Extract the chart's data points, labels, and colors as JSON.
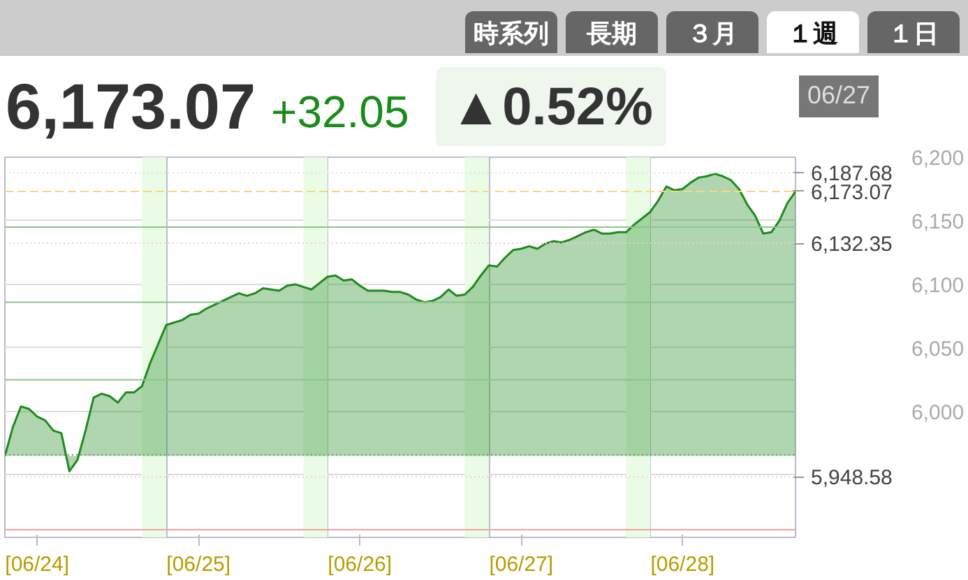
{
  "chart_data": {
    "type": "area",
    "title": "6,173.07",
    "annotations": [
      "時系列",
      "長期",
      "３月",
      "１週",
      "１日",
      "+32.05",
      "▲0.52%",
      "06/27"
    ],
    "categories": [
      null,
      null,
      null,
      null,
      "[06/24]",
      null,
      null,
      null,
      null,
      null,
      null,
      null,
      null,
      null,
      null,
      null,
      null,
      null,
      null,
      null,
      null,
      null,
      null,
      null,
      "[06/25]",
      null,
      null,
      null,
      null,
      null,
      null,
      null,
      null,
      null,
      null,
      null,
      null,
      null,
      null,
      null,
      null,
      null,
      null,
      null,
      "[06/26]",
      null,
      null,
      null,
      null,
      null,
      null,
      null,
      null,
      null,
      null,
      null,
      null,
      null,
      null,
      null,
      null,
      null,
      null,
      null,
      "[06/27]",
      null,
      null,
      null,
      null,
      null,
      null,
      null,
      null,
      null,
      null,
      null,
      null,
      null,
      null,
      null,
      null,
      null,
      null,
      null,
      "[06/28]",
      null,
      null,
      null,
      null,
      null,
      null,
      null,
      null,
      null,
      null,
      null,
      null,
      null,
      null
    ],
    "series": [
      {
        "color": "#1e8a1e",
        "values": [
          5965,
          5988,
          6004,
          6002,
          5996,
          5993,
          5985,
          5983,
          5953,
          5962,
          5985,
          6011,
          6014,
          6012,
          6007,
          6015,
          6015,
          6020,
          6038,
          6053,
          6068,
          6070,
          6072,
          6076,
          6077,
          6081,
          6084,
          6087,
          6090,
          6093,
          6091,
          6093,
          6097,
          6096,
          6095,
          6099,
          6100,
          6098,
          6096,
          6101,
          6106,
          6107,
          6103,
          6104,
          6099,
          6095,
          6095,
          6095,
          6094,
          6094,
          6092,
          6088,
          6086,
          6087,
          6090,
          6096,
          6091,
          6092,
          6098,
          6107,
          6115,
          6114,
          6121,
          6127,
          6128,
          6130,
          6128,
          6132,
          6134,
          6133,
          6135,
          6138,
          6141,
          6143,
          6140,
          6140,
          6141,
          6141,
          6147,
          6152,
          6157,
          6166,
          6177,
          6174,
          6175,
          6180,
          6184,
          6185,
          6187,
          6185,
          6182,
          6175,
          6163,
          6154,
          6140,
          6141,
          6150,
          6164,
          6173
        ]
      }
    ],
    "ylim": [
      5901,
      6200
    ],
    "yticks": [
      {
        "value": 5950,
        "label": null
      },
      {
        "value": 6000,
        "label": "6,000"
      },
      {
        "value": 6050,
        "label": "6,050"
      },
      {
        "value": 6100,
        "label": "6,100"
      },
      {
        "value": 6150,
        "label": "6,150"
      },
      {
        "value": 6200,
        "label": "6,200"
      }
    ],
    "grid": true,
    "ref_lines": [
      {
        "axis": "y",
        "value": 6145,
        "color": "#8cc48c",
        "line_style": "solid"
      },
      {
        "axis": "y",
        "value": 6086,
        "color": "#8cc48c",
        "line_style": "solid"
      },
      {
        "axis": "y",
        "value": 6025,
        "color": "#8cc48c",
        "line_style": "solid"
      },
      {
        "axis": "y",
        "value": 5966,
        "color": "#888888",
        "line_style": "dotted"
      },
      {
        "axis": "y",
        "value": 5907,
        "color": "#f4a0a0",
        "line_style": "solid"
      },
      {
        "axis": "y",
        "value": 6173.07,
        "label": "6,173.07",
        "color": "#ffd47a",
        "line_style": "dashed"
      },
      {
        "axis": "y",
        "value": 6187.68,
        "label": "6,187.68",
        "color": "#cdeec4",
        "line_style": "dotted"
      },
      {
        "axis": "y",
        "value": 6132.35,
        "label": "6,132.35",
        "color": "#f6cccc",
        "line_style": "dotted"
      },
      {
        "axis": "y",
        "value": 5948.58,
        "label": "5,948.58",
        "color": "#f6cccc",
        "line_style": "dotted"
      }
    ]
  }
}
